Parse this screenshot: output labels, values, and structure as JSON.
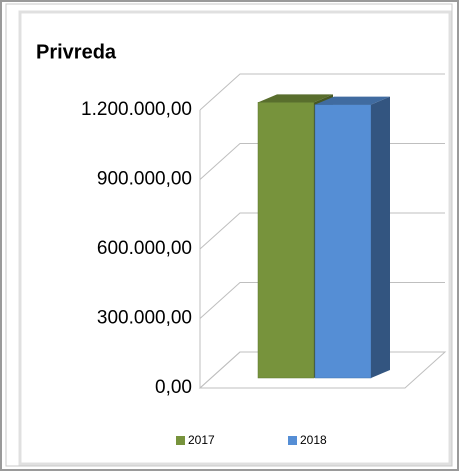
{
  "chart_data": {
    "type": "bar3d",
    "title": "Privreda",
    "categories": [
      null
    ],
    "series": [
      {
        "name": "2017",
        "color": "#77933c",
        "values": [
          1190000
        ]
      },
      {
        "name": "2018",
        "color": "#558ed5",
        "values": [
          1180000
        ]
      }
    ],
    "ylim": [
      0,
      1200000
    ],
    "yticks": [
      {
        "value": 0,
        "label": "0,00"
      },
      {
        "value": 300000,
        "label": "300.000,00"
      },
      {
        "value": 600000,
        "label": "600.000,00"
      },
      {
        "value": 900000,
        "label": "900.000,00"
      },
      {
        "value": 1200000,
        "label": "1.200.000,00"
      }
    ],
    "grid": true,
    "legend": "bottom"
  }
}
